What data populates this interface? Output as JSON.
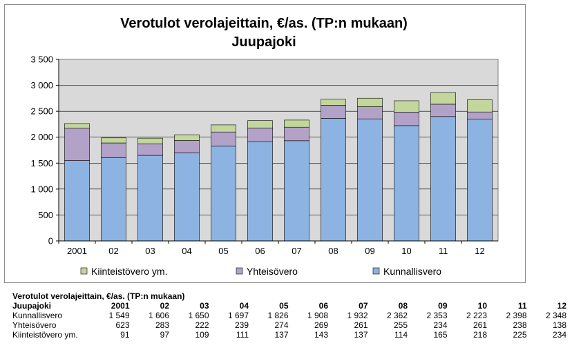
{
  "chart_data": {
    "type": "bar",
    "stacked": true,
    "title": "Verotulot verolajeittain, €/as. (TP:n mukaan)",
    "subtitle": "Juupajoki",
    "categories": [
      "2001",
      "02",
      "03",
      "04",
      "05",
      "06",
      "07",
      "08",
      "09",
      "10",
      "11",
      "12"
    ],
    "y_ticks": [
      "0",
      "500",
      "1 000",
      "1 500",
      "2 000",
      "2 500",
      "3 000",
      "3 500"
    ],
    "ylim": [
      0,
      3500
    ],
    "grid": true,
    "legend_position": "bottom",
    "series": [
      {
        "name": "Kunnallisvero",
        "color": "#8db3e2",
        "values": [
          1549,
          1606,
          1650,
          1697,
          1826,
          1908,
          1932,
          2362,
          2353,
          2223,
          2398,
          2348
        ]
      },
      {
        "name": "Yhteisövero",
        "color": "#b3a2c7",
        "values": [
          623,
          283,
          222,
          239,
          274,
          269,
          261,
          255,
          234,
          261,
          238,
          138
        ]
      },
      {
        "name": "Kiinteistövero ym.",
        "color": "#c3d69b",
        "values": [
          91,
          97,
          109,
          111,
          137,
          143,
          137,
          114,
          165,
          218,
          225,
          234
        ]
      }
    ],
    "legend_order": [
      2,
      1,
      0
    ],
    "plot_background": "#d9d9d9"
  },
  "table": {
    "title": "Verotulot verolajeittain, €/as. (TP:n mukaan)",
    "header_label": "Juupajoki",
    "columns": [
      "2001",
      "02",
      "03",
      "04",
      "05",
      "06",
      "07",
      "08",
      "09",
      "10",
      "11",
      "12"
    ],
    "rows": [
      {
        "label": "Kunnallisvero",
        "values": [
          "1 549",
          "1 606",
          "1 650",
          "1 697",
          "1 826",
          "1 908",
          "1 932",
          "2 362",
          "2 353",
          "2 223",
          "2 398",
          "2 348"
        ]
      },
      {
        "label": "Yhteisövero",
        "values": [
          "623",
          "283",
          "222",
          "239",
          "274",
          "269",
          "261",
          "255",
          "234",
          "261",
          "238",
          "138"
        ]
      },
      {
        "label": "Kiinteistövero ym.",
        "values": [
          "91",
          "97",
          "109",
          "111",
          "137",
          "143",
          "137",
          "114",
          "165",
          "218",
          "225",
          "234"
        ]
      }
    ]
  }
}
